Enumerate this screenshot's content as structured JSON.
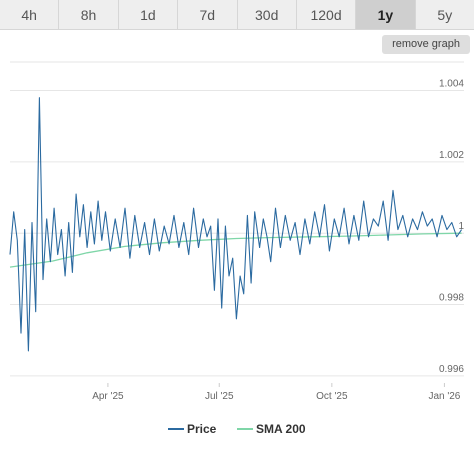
{
  "tabs": [
    {
      "label": "4h",
      "active": false
    },
    {
      "label": "8h",
      "active": false
    },
    {
      "label": "1d",
      "active": false
    },
    {
      "label": "7d",
      "active": false
    },
    {
      "label": "30d",
      "active": false
    },
    {
      "label": "120d",
      "active": false
    },
    {
      "label": "1y",
      "active": true
    },
    {
      "label": "5y",
      "active": false
    }
  ],
  "remove_graph_label": "remove graph",
  "colors": {
    "price": "#2b6aa0",
    "sma": "#7fd6a8",
    "grid": "#e6e6e6"
  },
  "chart_data": {
    "type": "line",
    "ylim": [
      0.9958,
      1.0048
    ],
    "xlim": [
      "2025-01-11",
      "2026-01-17"
    ],
    "y_ticks": [
      {
        "value": 0.996,
        "label": "0.996"
      },
      {
        "value": 0.998,
        "label": "0.998"
      },
      {
        "value": 1.0,
        "label": "1"
      },
      {
        "value": 1.002,
        "label": "1.002"
      },
      {
        "value": 1.004,
        "label": "1.004"
      }
    ],
    "x_ticks": [
      {
        "value": "2025-04-01",
        "label": "Apr '25"
      },
      {
        "value": "2025-07-01",
        "label": "Jul '25"
      },
      {
        "value": "2025-10-01",
        "label": "Oct '25"
      },
      {
        "value": "2026-01-01",
        "label": "Jan '26"
      }
    ],
    "grid": "horizontal",
    "legend_position": "bottom",
    "series": [
      {
        "name": "Price",
        "x": [
          "2025-01-11",
          "2025-01-14",
          "2025-01-17",
          "2025-01-20",
          "2025-01-23",
          "2025-01-26",
          "2025-01-29",
          "2025-02-01",
          "2025-02-04",
          "2025-02-07",
          "2025-02-10",
          "2025-02-13",
          "2025-02-16",
          "2025-02-19",
          "2025-02-22",
          "2025-02-25",
          "2025-02-28",
          "2025-03-03",
          "2025-03-06",
          "2025-03-09",
          "2025-03-12",
          "2025-03-15",
          "2025-03-18",
          "2025-03-21",
          "2025-03-24",
          "2025-03-27",
          "2025-03-30",
          "2025-04-03",
          "2025-04-07",
          "2025-04-11",
          "2025-04-15",
          "2025-04-19",
          "2025-04-23",
          "2025-04-27",
          "2025-05-01",
          "2025-05-05",
          "2025-05-09",
          "2025-05-13",
          "2025-05-17",
          "2025-05-21",
          "2025-05-25",
          "2025-05-29",
          "2025-06-02",
          "2025-06-06",
          "2025-06-10",
          "2025-06-14",
          "2025-06-18",
          "2025-06-21",
          "2025-06-24",
          "2025-06-27",
          "2025-06-30",
          "2025-07-03",
          "2025-07-06",
          "2025-07-09",
          "2025-07-12",
          "2025-07-15",
          "2025-07-18",
          "2025-07-21",
          "2025-07-24",
          "2025-07-27",
          "2025-07-30",
          "2025-08-03",
          "2025-08-06",
          "2025-08-09",
          "2025-08-12",
          "2025-08-16",
          "2025-08-20",
          "2025-08-24",
          "2025-08-28",
          "2025-09-01",
          "2025-09-05",
          "2025-09-09",
          "2025-09-13",
          "2025-09-17",
          "2025-09-21",
          "2025-09-25",
          "2025-09-29",
          "2025-10-03",
          "2025-10-07",
          "2025-10-11",
          "2025-10-15",
          "2025-10-19",
          "2025-10-23",
          "2025-10-27",
          "2025-10-31",
          "2025-11-04",
          "2025-11-08",
          "2025-11-12",
          "2025-11-16",
          "2025-11-20",
          "2025-11-24",
          "2025-11-28",
          "2025-12-02",
          "2025-12-06",
          "2025-12-10",
          "2025-12-14",
          "2025-12-18",
          "2025-12-22",
          "2025-12-26",
          "2025-12-30",
          "2026-01-03",
          "2026-01-07",
          "2026-01-11",
          "2026-01-15"
        ],
        "values": [
          0.9994,
          1.0006,
          0.9998,
          0.9972,
          1.0001,
          0.9967,
          1.0003,
          0.9978,
          1.0038,
          0.9987,
          1.0004,
          0.9992,
          1.0007,
          0.9994,
          1.0001,
          0.9988,
          1.0003,
          0.9989,
          1.0011,
          0.9999,
          1.0008,
          0.9996,
          1.0006,
          0.9997,
          1.0009,
          0.9998,
          1.0006,
          0.9995,
          1.0004,
          0.9996,
          1.0007,
          0.9993,
          1.0005,
          0.9996,
          1.0003,
          0.9994,
          1.0004,
          0.9995,
          1.0002,
          0.9997,
          1.0005,
          0.9996,
          1.0003,
          0.9994,
          1.0007,
          0.9996,
          1.0004,
          0.9999,
          1.0002,
          0.9984,
          1.0004,
          0.9979,
          1.0002,
          0.9988,
          0.9993,
          0.9976,
          0.9988,
          0.9983,
          1.0005,
          0.9986,
          1.0006,
          0.9996,
          1.0004,
          0.9999,
          0.9992,
          1.0007,
          0.9996,
          1.0005,
          0.9998,
          1.0003,
          0.9994,
          1.0004,
          0.9997,
          1.0006,
          0.9999,
          1.0008,
          0.9995,
          1.0004,
          0.9999,
          1.0007,
          0.9997,
          1.0005,
          0.9998,
          1.0009,
          0.9999,
          1.0004,
          1.0002,
          1.0009,
          0.9998,
          1.0012,
          1.0001,
          1.0005,
          0.9999,
          1.0004,
          1.0001,
          1.0006,
          1.0002,
          1.0004,
          0.9999,
          1.0005,
          1.0001,
          1.0003,
          0.9999,
          1.0001
        ]
      },
      {
        "name": "SMA 200",
        "x": [
          "2025-01-11",
          "2025-02-15",
          "2025-03-15",
          "2025-04-15",
          "2025-05-15",
          "2025-06-15",
          "2025-07-15",
          "2025-08-15",
          "2025-09-15",
          "2025-10-15",
          "2025-11-15",
          "2025-12-15",
          "2026-01-15"
        ],
        "values": [
          0.99905,
          0.99922,
          0.99945,
          0.99963,
          0.99973,
          0.9998,
          0.99985,
          0.99988,
          0.9999,
          0.99992,
          0.99995,
          0.99998,
          1.0
        ]
      }
    ]
  }
}
